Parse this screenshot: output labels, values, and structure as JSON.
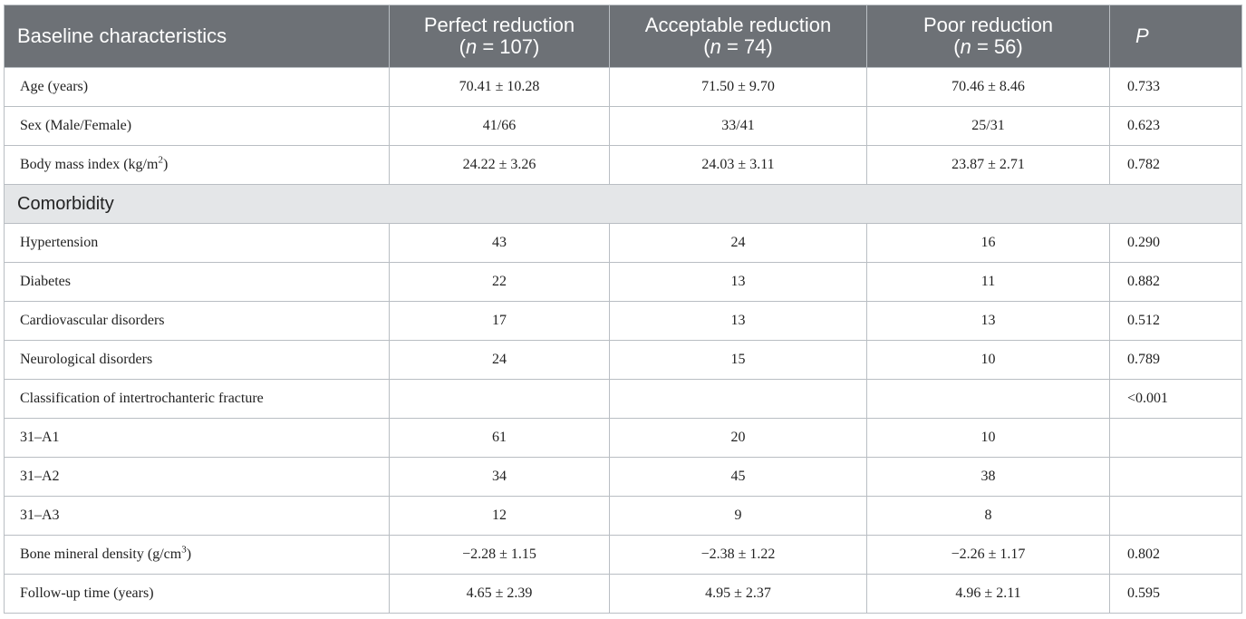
{
  "header": {
    "col0": "Baseline characteristics",
    "col1_line1": "Perfect reduction",
    "col1_line2_n": "n",
    "col1_line2_rest": " = 107)",
    "col2_line1": "Acceptable reduction",
    "col2_line2_n": "n",
    "col2_line2_rest": " = 74)",
    "col3_line1": "Poor reduction",
    "col3_line2_n": "n",
    "col3_line2_rest": " = 56)",
    "col4": "P",
    "open_paren": "("
  },
  "rows": [
    {
      "label": "Age (years)",
      "perfect": "70.41 ± 10.28",
      "acceptable": "71.50 ± 9.70",
      "poor": "70.46 ± 8.46",
      "p": "0.733"
    },
    {
      "label": "Sex (Male/Female)",
      "perfect": "41/66",
      "acceptable": "33/41",
      "poor": "25/31",
      "p": "0.623"
    },
    {
      "label_pre": "Body mass index (kg/m",
      "label_sup": "2",
      "label_post": ")",
      "perfect": "24.22 ± 3.26",
      "acceptable": "24.03 ± 3.11",
      "poor": "23.87 ± 2.71",
      "p": "0.782"
    },
    {
      "section": "Comorbidity"
    },
    {
      "label": "Hypertension",
      "perfect": "43",
      "acceptable": "24",
      "poor": "16",
      "p": "0.290"
    },
    {
      "label": "Diabetes",
      "perfect": "22",
      "acceptable": "13",
      "poor": "11",
      "p": "0.882"
    },
    {
      "label": "Cardiovascular disorders",
      "perfect": "17",
      "acceptable": "13",
      "poor": "13",
      "p": "0.512"
    },
    {
      "label": "Neurological disorders",
      "perfect": "24",
      "acceptable": "15",
      "poor": "10",
      "p": "0.789"
    },
    {
      "label": "Classification of intertrochanteric fracture",
      "perfect": "",
      "acceptable": "",
      "poor": "",
      "p": "<0.001"
    },
    {
      "label": "31–A1",
      "perfect": "61",
      "acceptable": "20",
      "poor": "10",
      "p": ""
    },
    {
      "label": "31–A2",
      "perfect": "34",
      "acceptable": "45",
      "poor": "38",
      "p": ""
    },
    {
      "label": "31–A3",
      "perfect": "12",
      "acceptable": "9",
      "poor": "8",
      "p": ""
    },
    {
      "label_pre": "Bone mineral density (g/cm",
      "label_sup": "3",
      "label_post": ")",
      "perfect": "−2.28 ± 1.15",
      "acceptable": "−2.38 ± 1.22",
      "poor": "−2.26 ± 1.17",
      "p": "0.802"
    },
    {
      "label": "Follow-up time (years)",
      "perfect": "4.65 ± 2.39",
      "acceptable": "4.95 ± 2.37",
      "poor": "4.96 ± 2.11",
      "p": "0.595"
    }
  ]
}
